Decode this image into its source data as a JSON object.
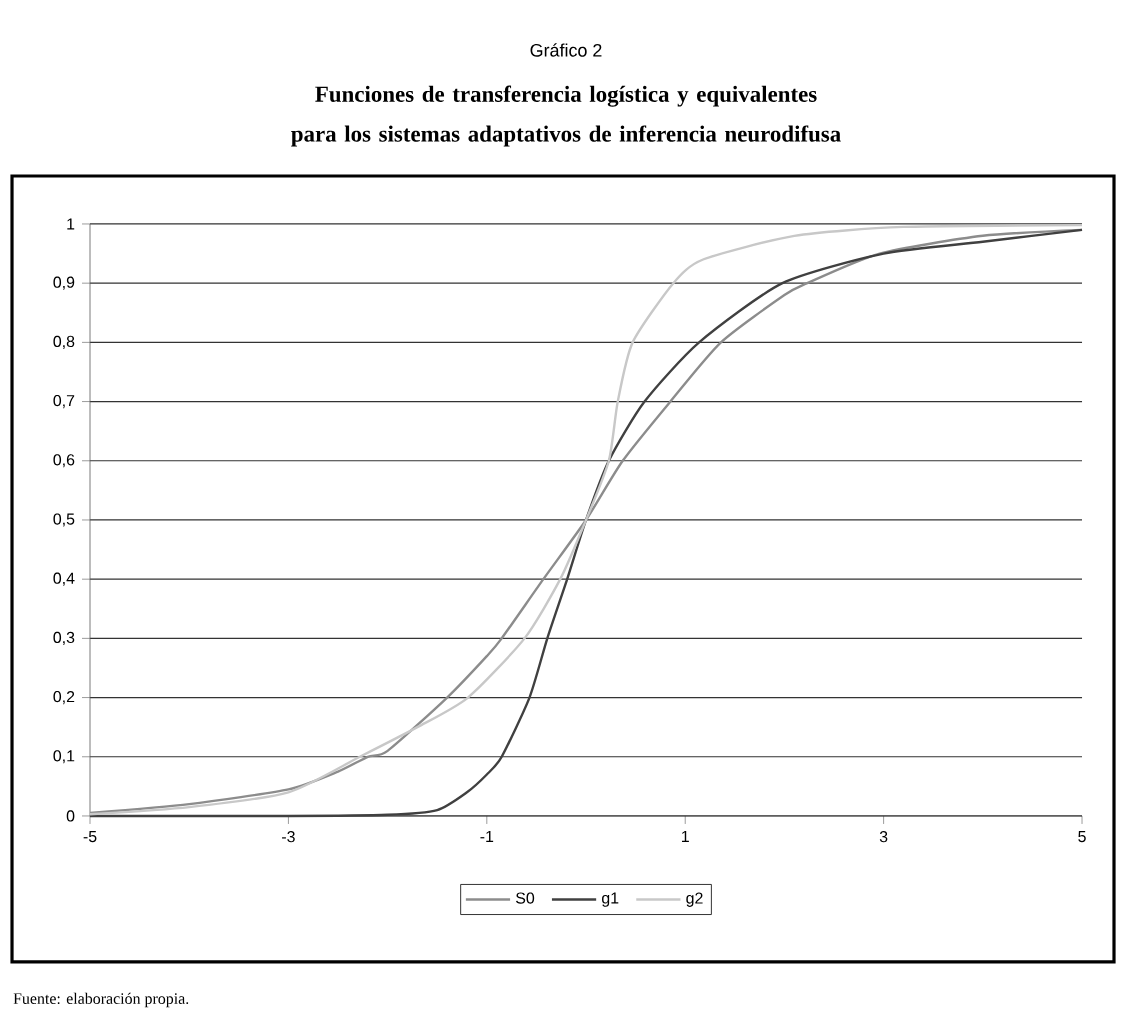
{
  "chart_data": {
    "type": "line",
    "title": "Gráfico 2",
    "subtitle": "Funciones de transferencia logística y equivalentes para los sistemas adaptativos de inferencia neurodifusa",
    "annotations": [
      "Fuente: elaboración propia."
    ],
    "xlim": [
      -5,
      5
    ],
    "xticks": [
      -5,
      -3,
      -1,
      1,
      3,
      5
    ],
    "ylim": [
      0,
      1
    ],
    "yticks": [
      0,
      {
        "value": 0.1,
        "label": "0,1"
      },
      {
        "value": 0.2,
        "label": "0,2"
      },
      {
        "value": 0.3,
        "label": "0,3"
      },
      {
        "value": 0.4,
        "label": "0,4"
      },
      {
        "value": 0.5,
        "label": "0,5"
      },
      {
        "value": 0.6,
        "label": "0,6"
      },
      {
        "value": 0.7,
        "label": "0,7"
      },
      {
        "value": 0.8,
        "label": "0,8"
      },
      {
        "value": 0.9,
        "label": "0,9"
      },
      1
    ],
    "grid": "y",
    "legend": "bottom",
    "marker": "none",
    "line_style": "solid",
    "series": [
      {
        "name": "S0",
        "color": "#8c8c8c",
        "x": [
          -5,
          -4,
          -3,
          -2.5,
          -2.2,
          -2,
          -1.4,
          -1,
          -0.85,
          -0.43,
          0,
          0.37,
          0.85,
          1.36,
          2,
          2.23,
          2.96,
          4,
          5
        ],
        "values": [
          0.005,
          0.02,
          0.045,
          0.075,
          0.1,
          0.11,
          0.2,
          0.27,
          0.3,
          0.4,
          0.5,
          0.6,
          0.7,
          0.8,
          0.88,
          0.9,
          0.95,
          0.98,
          0.99
        ]
      },
      {
        "name": "g1",
        "color": "#404040",
        "x": [
          -5,
          -3,
          -2,
          -1.5,
          -1.2,
          -1,
          -0.85,
          -0.57,
          -0.39,
          -0.19,
          0,
          0.23,
          0.59,
          1.14,
          1.98,
          3,
          4,
          5
        ],
        "values": [
          0,
          0,
          0.002,
          0.01,
          0.04,
          0.07,
          0.1,
          0.2,
          0.3,
          0.4,
          0.5,
          0.6,
          0.7,
          0.8,
          0.9,
          0.95,
          0.97,
          0.99
        ]
      },
      {
        "name": "g2",
        "color": "#c8c8c8",
        "x": [
          -5,
          -4,
          -3,
          -2.28,
          -1.7,
          -1.19,
          -0.62,
          -0.26,
          0,
          0.23,
          0.32,
          0.47,
          0.88,
          1.18,
          2.1,
          3.2,
          5
        ],
        "values": [
          0.003,
          0.015,
          0.04,
          0.1,
          0.15,
          0.2,
          0.3,
          0.4,
          0.5,
          0.6,
          0.7,
          0.8,
          0.9,
          0.94,
          0.98,
          0.995,
          0.998
        ]
      }
    ]
  }
}
